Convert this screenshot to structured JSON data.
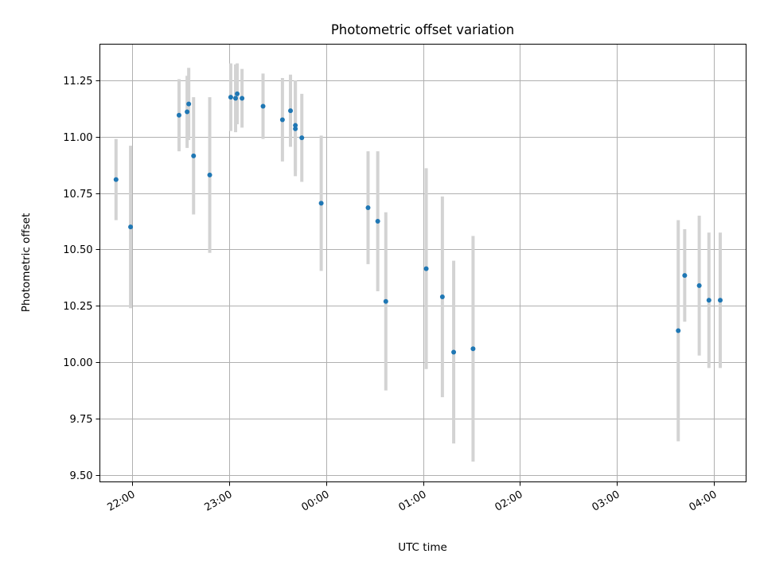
{
  "chart_data": {
    "type": "scatter",
    "title": "Photometric offset variation",
    "xlabel": "UTC time",
    "ylabel": "Photometric offset",
    "grid": true,
    "x_tick_labels": [
      "22:00",
      "23:00",
      "00:00",
      "01:00",
      "02:00",
      "03:00",
      "04:00"
    ],
    "y_tick_labels": [
      "9.50",
      "9.75",
      "10.00",
      "10.25",
      "10.50",
      "10.75",
      "11.00",
      "11.25"
    ],
    "xlim": [
      "21:40",
      "04:20"
    ],
    "ylim": [
      9.47,
      11.41
    ],
    "point_color": "#1f77b4",
    "errorbar_color": "#d3d3d3",
    "series": [
      {
        "points": [
          {
            "x": "21:50",
            "y": 10.81,
            "yerr": 0.18
          },
          {
            "x": "21:59",
            "y": 10.6,
            "yerr": 0.36
          },
          {
            "x": "22:29",
            "y": 11.095,
            "yerr": 0.16
          },
          {
            "x": "22:34",
            "y": 11.11,
            "yerr": 0.16
          },
          {
            "x": "22:35",
            "y": 11.145,
            "yerr": 0.16
          },
          {
            "x": "22:38",
            "y": 10.915,
            "yerr": 0.26
          },
          {
            "x": "22:48",
            "y": 10.83,
            "yerr": 0.345
          },
          {
            "x": "23:01",
            "y": 11.175,
            "yerr": 0.15
          },
          {
            "x": "23:04",
            "y": 11.17,
            "yerr": 0.15
          },
          {
            "x": "23:05",
            "y": 11.19,
            "yerr": 0.135
          },
          {
            "x": "23:08",
            "y": 11.17,
            "yerr": 0.13
          },
          {
            "x": "23:21",
            "y": 11.135,
            "yerr": 0.145
          },
          {
            "x": "23:33",
            "y": 11.075,
            "yerr": 0.185
          },
          {
            "x": "23:38",
            "y": 11.115,
            "yerr": 0.16
          },
          {
            "x": "23:41",
            "y": 11.035,
            "yerr": 0.21
          },
          {
            "x": "23:41",
            "y": 11.05,
            "yerr": 0.2
          },
          {
            "x": "23:45",
            "y": 10.995,
            "yerr": 0.195
          },
          {
            "x": "23:57",
            "y": 10.705,
            "yerr": 0.3
          },
          {
            "x": "00:26",
            "y": 10.685,
            "yerr": 0.25
          },
          {
            "x": "00:32",
            "y": 10.625,
            "yerr": 0.31
          },
          {
            "x": "00:37",
            "y": 10.27,
            "yerr": 0.395
          },
          {
            "x": "01:02",
            "y": 10.415,
            "yerr": 0.445
          },
          {
            "x": "01:12",
            "y": 10.29,
            "yerr": 0.445
          },
          {
            "x": "01:19",
            "y": 10.045,
            "yerr": 0.405
          },
          {
            "x": "01:31",
            "y": 10.06,
            "yerr": 0.5
          },
          {
            "x": "03:38",
            "y": 10.14,
            "yerr": 0.49
          },
          {
            "x": "03:42",
            "y": 10.385,
            "yerr": 0.205
          },
          {
            "x": "03:51",
            "y": 10.34,
            "yerr": 0.31
          },
          {
            "x": "03:57",
            "y": 10.275,
            "yerr": 0.3
          },
          {
            "x": "04:04",
            "y": 10.275,
            "yerr": 0.3
          }
        ]
      }
    ]
  }
}
